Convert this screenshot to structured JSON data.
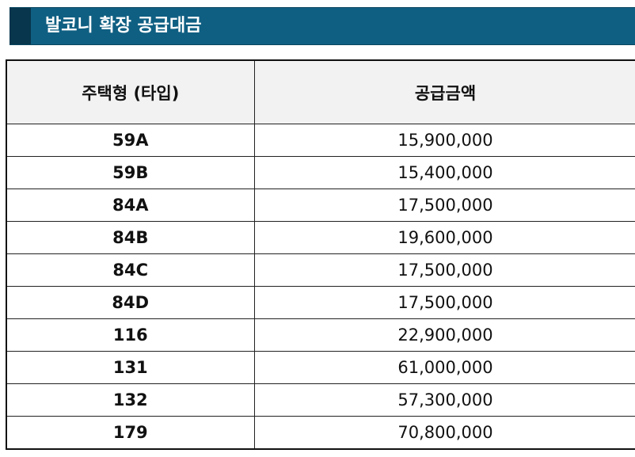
{
  "title": "발코니 확장 공급대금",
  "table": {
    "headers": {
      "type": "주택형 (타입)",
      "amount": "공급금액"
    },
    "rows": [
      {
        "type": "59A",
        "amount": "15,900,000"
      },
      {
        "type": "59B",
        "amount": "15,400,000"
      },
      {
        "type": "84A",
        "amount": "17,500,000"
      },
      {
        "type": "84B",
        "amount": "19,600,000"
      },
      {
        "type": "84C",
        "amount": "17,500,000"
      },
      {
        "type": "84D",
        "amount": "17,500,000"
      },
      {
        "type": "116",
        "amount": "22,900,000"
      },
      {
        "type": "131",
        "amount": "61,000,000"
      },
      {
        "type": "132",
        "amount": "57,300,000"
      },
      {
        "type": "179",
        "amount": "70,800,000"
      }
    ]
  },
  "colors": {
    "title_background": "#0f5f82",
    "title_accent": "#07364d",
    "header_background": "#f2f2f2"
  }
}
